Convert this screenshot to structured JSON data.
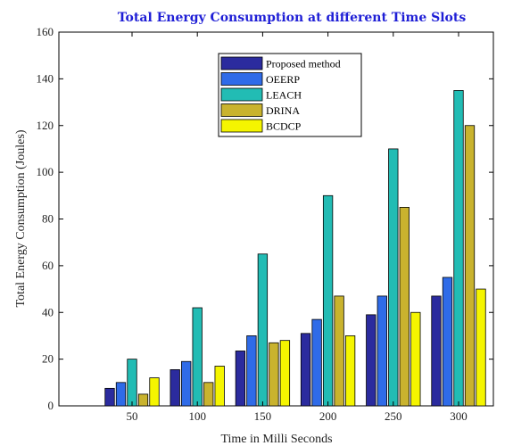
{
  "chart_data": {
    "type": "bar",
    "title": "Total Energy Consumption at different Time Slots",
    "xlabel": "Time in Milli Seconds",
    "ylabel": "Total Energy Consumption (Joules)",
    "categories": [
      "50",
      "100",
      "150",
      "200",
      "250",
      "300"
    ],
    "ylim": [
      0,
      160
    ],
    "yticks": [
      0,
      20,
      40,
      60,
      80,
      100,
      120,
      140,
      160
    ],
    "legend_position": "top-center",
    "grid": false,
    "series": [
      {
        "name": "Proposed method",
        "color": "#2b2b9e",
        "values": [
          7.5,
          15.5,
          23.5,
          31,
          39,
          47
        ]
      },
      {
        "name": "OEERP",
        "color": "#2f6be8",
        "values": [
          10,
          19,
          30,
          37,
          47,
          55
        ]
      },
      {
        "name": "LEACH",
        "color": "#22bcb4",
        "values": [
          20,
          42,
          65,
          90,
          110,
          135
        ]
      },
      {
        "name": "DRINA",
        "color": "#c9b32e",
        "values": [
          5,
          10,
          27,
          47,
          85,
          120
        ]
      },
      {
        "name": "BCDCP",
        "color": "#f5f500",
        "values": [
          12,
          17,
          28,
          30,
          40,
          50
        ]
      }
    ]
  }
}
